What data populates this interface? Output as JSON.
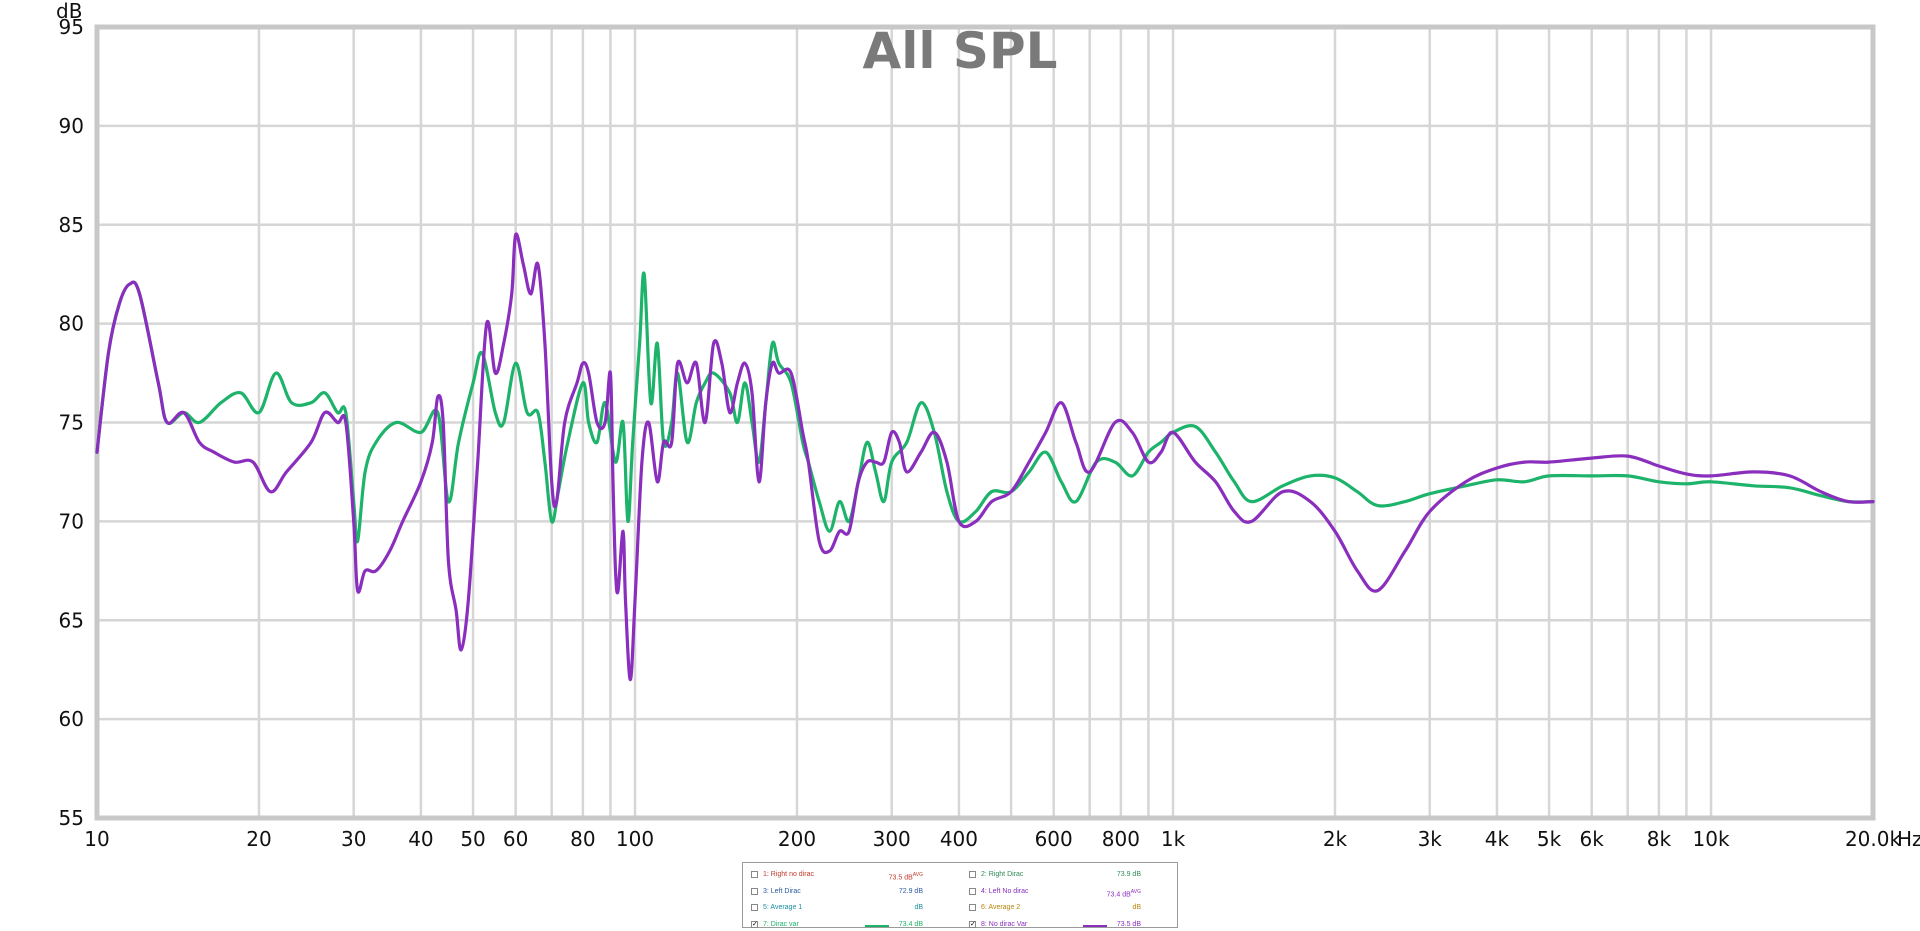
{
  "chart_data": {
    "type": "line",
    "title": "All SPL",
    "ylabel": "dB",
    "xunit": "Hz",
    "xscale": "log",
    "xlim": [
      10,
      20000
    ],
    "ylim": [
      55,
      95
    ],
    "grid": true,
    "y_ticks": [
      55,
      60,
      65,
      70,
      75,
      80,
      85,
      90,
      95
    ],
    "x_ticks": [
      {
        "value": 10,
        "label": "10"
      },
      {
        "value": 20,
        "label": "20"
      },
      {
        "value": 30,
        "label": "30"
      },
      {
        "value": 40,
        "label": "40"
      },
      {
        "value": 50,
        "label": "50"
      },
      {
        "value": 60,
        "label": "60"
      },
      {
        "value": 80,
        "label": "80"
      },
      {
        "value": 100,
        "label": "100"
      },
      {
        "value": 200,
        "label": "200"
      },
      {
        "value": 300,
        "label": "300"
      },
      {
        "value": 400,
        "label": "400"
      },
      {
        "value": 600,
        "label": "600"
      },
      {
        "value": 800,
        "label": "800"
      },
      {
        "value": 1000,
        "label": "1k"
      },
      {
        "value": 2000,
        "label": "2k"
      },
      {
        "value": 3000,
        "label": "3k"
      },
      {
        "value": 4000,
        "label": "4k"
      },
      {
        "value": 5000,
        "label": "5k"
      },
      {
        "value": 6000,
        "label": "6k"
      },
      {
        "value": 8000,
        "label": "8k"
      },
      {
        "value": 10000,
        "label": "10k"
      },
      {
        "value": 20000,
        "label": "20.0k"
      }
    ],
    "x_gridlines": [
      10,
      20,
      30,
      40,
      50,
      60,
      70,
      80,
      90,
      100,
      200,
      300,
      400,
      500,
      600,
      700,
      800,
      900,
      1000,
      2000,
      3000,
      4000,
      5000,
      6000,
      7000,
      8000,
      9000,
      10000,
      20000
    ],
    "series": [
      {
        "name": "7: Dirac var",
        "color": "#1db36a",
        "points": [
          [
            10,
            73.5
          ],
          [
            10.5,
            78.5
          ],
          [
            11,
            81
          ],
          [
            11.5,
            82
          ],
          [
            12,
            81.5
          ],
          [
            13,
            77
          ],
          [
            13.5,
            75
          ],
          [
            14.5,
            75.5
          ],
          [
            15.5,
            75
          ],
          [
            17,
            76
          ],
          [
            18.5,
            76.5
          ],
          [
            20,
            75.5
          ],
          [
            21.5,
            77.5
          ],
          [
            23,
            76
          ],
          [
            25,
            76
          ],
          [
            26.5,
            76.5
          ],
          [
            28,
            75.5
          ],
          [
            29,
            75.5
          ],
          [
            30,
            71
          ],
          [
            30.5,
            69
          ],
          [
            31.5,
            72.5
          ],
          [
            33,
            74
          ],
          [
            36,
            75
          ],
          [
            40,
            74.5
          ],
          [
            43,
            75.5
          ],
          [
            45,
            71
          ],
          [
            47,
            74
          ],
          [
            50,
            77
          ],
          [
            52,
            78.5
          ],
          [
            55,
            75.5
          ],
          [
            57,
            75
          ],
          [
            60,
            78
          ],
          [
            63,
            75.5
          ],
          [
            66,
            75.5
          ],
          [
            68,
            73
          ],
          [
            70,
            70
          ],
          [
            72,
            71.5
          ],
          [
            75,
            74
          ],
          [
            80,
            77
          ],
          [
            82,
            75
          ],
          [
            85,
            74
          ],
          [
            88,
            76
          ],
          [
            92,
            73
          ],
          [
            95,
            75
          ],
          [
            97,
            70
          ],
          [
            99,
            74
          ],
          [
            102,
            79
          ],
          [
            104,
            82.5
          ],
          [
            107,
            76
          ],
          [
            110,
            79
          ],
          [
            113,
            74
          ],
          [
            117,
            75
          ],
          [
            120,
            77.5
          ],
          [
            125,
            74
          ],
          [
            130,
            76
          ],
          [
            135,
            77
          ],
          [
            140,
            77.5
          ],
          [
            150,
            76.5
          ],
          [
            155,
            75
          ],
          [
            160,
            77
          ],
          [
            165,
            75
          ],
          [
            170,
            73
          ],
          [
            175,
            76
          ],
          [
            180,
            79
          ],
          [
            185,
            78
          ],
          [
            195,
            77
          ],
          [
            205,
            74
          ],
          [
            210,
            73
          ],
          [
            220,
            71
          ],
          [
            230,
            69.5
          ],
          [
            240,
            71
          ],
          [
            250,
            70
          ],
          [
            260,
            72
          ],
          [
            270,
            74
          ],
          [
            280,
            72.5
          ],
          [
            290,
            71
          ],
          [
            300,
            73
          ],
          [
            320,
            74
          ],
          [
            340,
            76
          ],
          [
            360,
            74.5
          ],
          [
            380,
            71.5
          ],
          [
            400,
            70
          ],
          [
            430,
            70.5
          ],
          [
            460,
            71.5
          ],
          [
            500,
            71.5
          ],
          [
            540,
            72.5
          ],
          [
            580,
            73.5
          ],
          [
            620,
            72
          ],
          [
            660,
            71
          ],
          [
            720,
            73
          ],
          [
            780,
            73
          ],
          [
            840,
            72.3
          ],
          [
            900,
            73.5
          ],
          [
            950,
            74
          ],
          [
            1000,
            74.5
          ],
          [
            1100,
            74.8
          ],
          [
            1200,
            73.5
          ],
          [
            1300,
            72
          ],
          [
            1400,
            71
          ],
          [
            1600,
            71.8
          ],
          [
            1800,
            72.3
          ],
          [
            2000,
            72.2
          ],
          [
            2200,
            71.5
          ],
          [
            2400,
            70.8
          ],
          [
            2700,
            71
          ],
          [
            3000,
            71.4
          ],
          [
            3500,
            71.8
          ],
          [
            4000,
            72.1
          ],
          [
            4500,
            72
          ],
          [
            5000,
            72.3
          ],
          [
            6000,
            72.3
          ],
          [
            7000,
            72.3
          ],
          [
            8000,
            72
          ],
          [
            9000,
            71.9
          ],
          [
            10000,
            72
          ],
          [
            12000,
            71.8
          ],
          [
            14000,
            71.7
          ],
          [
            16000,
            71.3
          ],
          [
            18000,
            71
          ],
          [
            20000,
            71
          ]
        ]
      },
      {
        "name": "8: No dirac Var",
        "color": "#8a2ebd",
        "points": [
          [
            10,
            73.5
          ],
          [
            10.5,
            78.5
          ],
          [
            11,
            81
          ],
          [
            11.5,
            82
          ],
          [
            12,
            81.5
          ],
          [
            13,
            77
          ],
          [
            13.5,
            75
          ],
          [
            14.5,
            75.5
          ],
          [
            15.5,
            74
          ],
          [
            16.5,
            73.5
          ],
          [
            18,
            73
          ],
          [
            19.5,
            73
          ],
          [
            21,
            71.5
          ],
          [
            22.5,
            72.5
          ],
          [
            25,
            74
          ],
          [
            26.5,
            75.5
          ],
          [
            28,
            75
          ],
          [
            29,
            75
          ],
          [
            30,
            70
          ],
          [
            30.5,
            66.5
          ],
          [
            31.5,
            67.5
          ],
          [
            33,
            67.5
          ],
          [
            35,
            68.5
          ],
          [
            37,
            70
          ],
          [
            40,
            72
          ],
          [
            42,
            74
          ],
          [
            43,
            76.3
          ],
          [
            44,
            75
          ],
          [
            45,
            68
          ],
          [
            46.5,
            65.5
          ],
          [
            47.5,
            63.5
          ],
          [
            49,
            66
          ],
          [
            51,
            73
          ],
          [
            53,
            80
          ],
          [
            55,
            77.5
          ],
          [
            57,
            79
          ],
          [
            59,
            81.5
          ],
          [
            60,
            84.5
          ],
          [
            62,
            83
          ],
          [
            64,
            81.5
          ],
          [
            66,
            83
          ],
          [
            68,
            79
          ],
          [
            70,
            72
          ],
          [
            71.5,
            71
          ],
          [
            74,
            75
          ],
          [
            78,
            77
          ],
          [
            80,
            78
          ],
          [
            82,
            77.5
          ],
          [
            85,
            75
          ],
          [
            88,
            75
          ],
          [
            90,
            77.5
          ],
          [
            91,
            72
          ],
          [
            92,
            67.5
          ],
          [
            93,
            66.5
          ],
          [
            95,
            69.5
          ],
          [
            96,
            66
          ],
          [
            98,
            62
          ],
          [
            100,
            66
          ],
          [
            103,
            73
          ],
          [
            106,
            75
          ],
          [
            110,
            72
          ],
          [
            113,
            74
          ],
          [
            117,
            74
          ],
          [
            120,
            78
          ],
          [
            125,
            77
          ],
          [
            130,
            78
          ],
          [
            135,
            75
          ],
          [
            140,
            79
          ],
          [
            145,
            78
          ],
          [
            150,
            75.5
          ],
          [
            155,
            77
          ],
          [
            160,
            78
          ],
          [
            165,
            76.5
          ],
          [
            170,
            72
          ],
          [
            175,
            76
          ],
          [
            180,
            78
          ],
          [
            185,
            77.5
          ],
          [
            195,
            77.5
          ],
          [
            205,
            74.5
          ],
          [
            210,
            73
          ],
          [
            220,
            69
          ],
          [
            230,
            68.5
          ],
          [
            240,
            69.5
          ],
          [
            250,
            69.5
          ],
          [
            260,
            72
          ],
          [
            270,
            73
          ],
          [
            280,
            73
          ],
          [
            290,
            73
          ],
          [
            300,
            74.5
          ],
          [
            310,
            74
          ],
          [
            320,
            72.5
          ],
          [
            340,
            73.5
          ],
          [
            360,
            74.5
          ],
          [
            380,
            73
          ],
          [
            400,
            70
          ],
          [
            430,
            70
          ],
          [
            460,
            71
          ],
          [
            500,
            71.5
          ],
          [
            540,
            73
          ],
          [
            580,
            74.5
          ],
          [
            620,
            76
          ],
          [
            660,
            74
          ],
          [
            700,
            72.5
          ],
          [
            780,
            75
          ],
          [
            840,
            74.5
          ],
          [
            900,
            73
          ],
          [
            950,
            73.5
          ],
          [
            1000,
            74.5
          ],
          [
            1100,
            73
          ],
          [
            1200,
            72
          ],
          [
            1300,
            70.5
          ],
          [
            1400,
            70
          ],
          [
            1600,
            71.5
          ],
          [
            1800,
            71
          ],
          [
            2000,
            69.5
          ],
          [
            2200,
            67.5
          ],
          [
            2400,
            66.5
          ],
          [
            2700,
            68.5
          ],
          [
            3000,
            70.5
          ],
          [
            3500,
            72
          ],
          [
            4000,
            72.7
          ],
          [
            4500,
            73
          ],
          [
            5000,
            73
          ],
          [
            6000,
            73.2
          ],
          [
            7000,
            73.3
          ],
          [
            8000,
            72.8
          ],
          [
            9000,
            72.4
          ],
          [
            10000,
            72.3
          ],
          [
            12000,
            72.5
          ],
          [
            14000,
            72.3
          ],
          [
            16000,
            71.5
          ],
          [
            18000,
            71
          ],
          [
            20000,
            71
          ]
        ]
      }
    ]
  },
  "legend": {
    "items": [
      {
        "label": "1: Right no dirac",
        "value": "73.5 dB",
        "value_sup": "AVG",
        "checked": false,
        "color": "#c0392b",
        "line_color": "",
        "col": 0,
        "row": 0
      },
      {
        "label": "2: Right Dirac",
        "value": "73.9 dB",
        "value_sup": "",
        "checked": false,
        "color": "#2e8b57",
        "line_color": "",
        "col": 1,
        "row": 0
      },
      {
        "label": "3: Left Dirac",
        "value": "72.9 dB",
        "value_sup": "",
        "checked": false,
        "color": "#2c5aa0",
        "line_color": "",
        "col": 0,
        "row": 1
      },
      {
        "label": "4: Left No dirac",
        "value": "73.4 dB",
        "value_sup": "AVG",
        "checked": false,
        "color": "#8a2ebd",
        "line_color": "",
        "col": 1,
        "row": 1
      },
      {
        "label": "5: Average 1",
        "value": "dB",
        "value_sup": "",
        "checked": false,
        "color": "#1a8fa0",
        "line_color": "",
        "col": 0,
        "row": 2
      },
      {
        "label": "6: Average 2",
        "value": "dB",
        "value_sup": "",
        "checked": false,
        "color": "#b8860b",
        "line_color": "",
        "col": 1,
        "row": 2
      },
      {
        "label": "7: Dirac var",
        "value": "73.4 dB",
        "value_sup": "",
        "checked": true,
        "color": "#1db36a",
        "line_color": "#1db36a",
        "col": 0,
        "row": 3
      },
      {
        "label": "8: No dirac Var",
        "value": "73.5 dB",
        "value_sup": "",
        "checked": true,
        "color": "#8a2ebd",
        "line_color": "#8a2ebd",
        "col": 1,
        "row": 3
      }
    ]
  }
}
